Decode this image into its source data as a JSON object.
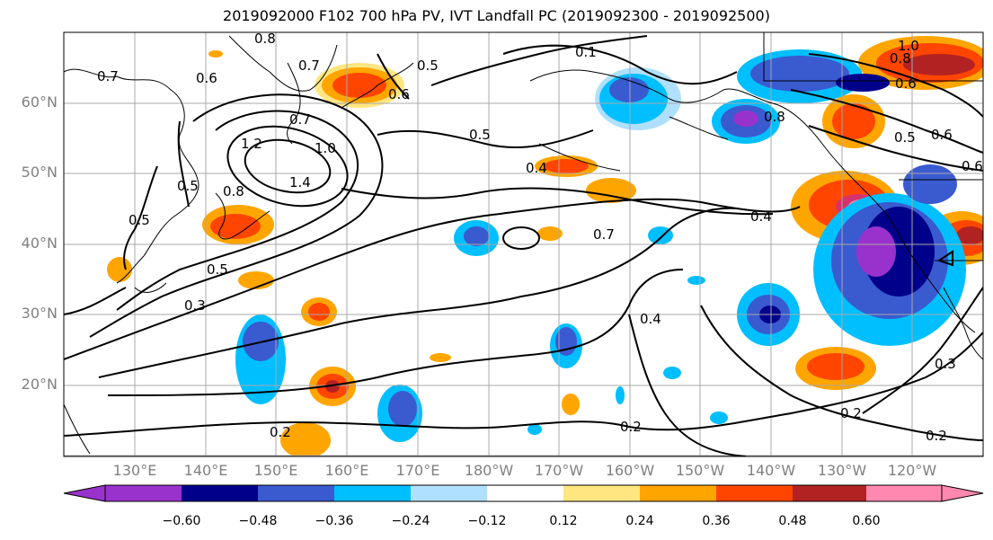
{
  "title": "2019092000 F102 700 hPa PV, IVT Landfall PC (2019092300 - 2019092500)",
  "lat_labels": [
    "60°N",
    "50°N",
    "40°N",
    "30°N",
    "20°N"
  ],
  "lon_labels": [
    "130°E",
    "140°E",
    "150°E",
    "160°E",
    "170°E",
    "180°W",
    "170°W",
    "160°W",
    "150°W",
    "140°W",
    "130°W",
    "120°W"
  ],
  "colorbar": {
    "ticks": [
      "−0.60",
      "−0.48",
      "−0.36",
      "−0.24",
      "−0.12",
      "0.12",
      "0.24",
      "0.36",
      "0.48",
      "0.60"
    ],
    "colors": [
      "#9932cc",
      "#00008b",
      "#3a5ad0",
      "#00bfff",
      "#b0e0ff",
      "#ffffff",
      "#ffe680",
      "#ffa500",
      "#ff4500",
      "#b22222",
      "#ff88b0"
    ]
  },
  "contour_labels": [
    "0.8",
    "0.7",
    "0.6",
    "0.7",
    "0.5",
    "0.6",
    "0.1",
    "1.0",
    "0.8",
    "0.6",
    "0.7",
    "1.2",
    "1.0",
    "1.4",
    "0.8",
    "0.5",
    "0.5",
    "0.8",
    "0.5",
    "0.6",
    "0.6",
    "0.4",
    "0.7",
    "0.4",
    "0.5",
    "0.5",
    "0.3",
    "0.4",
    "0.2",
    "0.2",
    "0.2",
    "0.3",
    "0.2"
  ]
}
